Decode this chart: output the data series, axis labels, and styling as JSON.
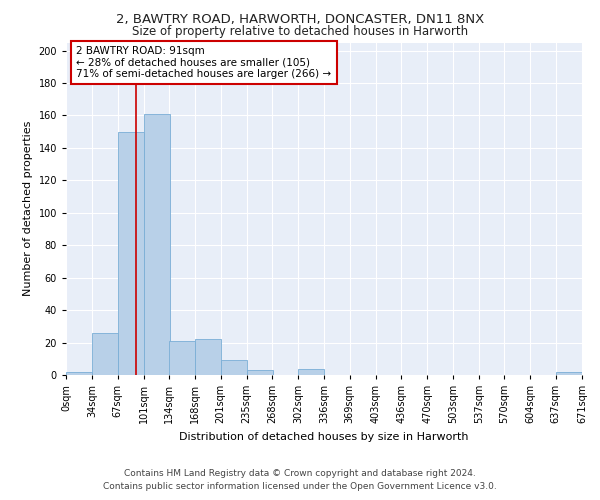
{
  "title_line1": "2, BAWTRY ROAD, HARWORTH, DONCASTER, DN11 8NX",
  "title_line2": "Size of property relative to detached houses in Harworth",
  "xlabel": "Distribution of detached houses by size in Harworth",
  "ylabel": "Number of detached properties",
  "bar_color": "#b8d0e8",
  "bar_edge_color": "#7aaed6",
  "background_color": "#e8eef8",
  "grid_color": "#ffffff",
  "fig_background": "#ffffff",
  "bin_edges": [
    0,
    34,
    67,
    101,
    134,
    168,
    201,
    235,
    268,
    302,
    336,
    369,
    403,
    436,
    470,
    503,
    537,
    570,
    604,
    637,
    671
  ],
  "bin_labels": [
    "0sqm",
    "34sqm",
    "67sqm",
    "101sqm",
    "134sqm",
    "168sqm",
    "201sqm",
    "235sqm",
    "268sqm",
    "302sqm",
    "336sqm",
    "369sqm",
    "403sqm",
    "436sqm",
    "470sqm",
    "503sqm",
    "537sqm",
    "570sqm",
    "604sqm",
    "637sqm",
    "671sqm"
  ],
  "bar_heights": [
    2,
    26,
    150,
    161,
    21,
    22,
    9,
    3,
    0,
    4,
    0,
    0,
    0,
    0,
    0,
    0,
    0,
    0,
    0,
    2
  ],
  "ylim": [
    0,
    205
  ],
  "yticks": [
    0,
    20,
    40,
    60,
    80,
    100,
    120,
    140,
    160,
    180,
    200
  ],
  "property_value": 91,
  "property_label": "2 BAWTRY ROAD: 91sqm",
  "annotation_line2": "← 28% of detached houses are smaller (105)",
  "annotation_line3": "71% of semi-detached houses are larger (266) →",
  "footnote_line1": "Contains HM Land Registry data © Crown copyright and database right 2024.",
  "footnote_line2": "Contains public sector information licensed under the Open Government Licence v3.0.",
  "annotation_box_color": "#ffffff",
  "annotation_border_color": "#cc0000",
  "vline_color": "#cc0000",
  "title_fontsize": 9.5,
  "subtitle_fontsize": 8.5,
  "axis_label_fontsize": 8,
  "tick_fontsize": 7,
  "annotation_fontsize": 7.5,
  "footnote_fontsize": 6.5
}
